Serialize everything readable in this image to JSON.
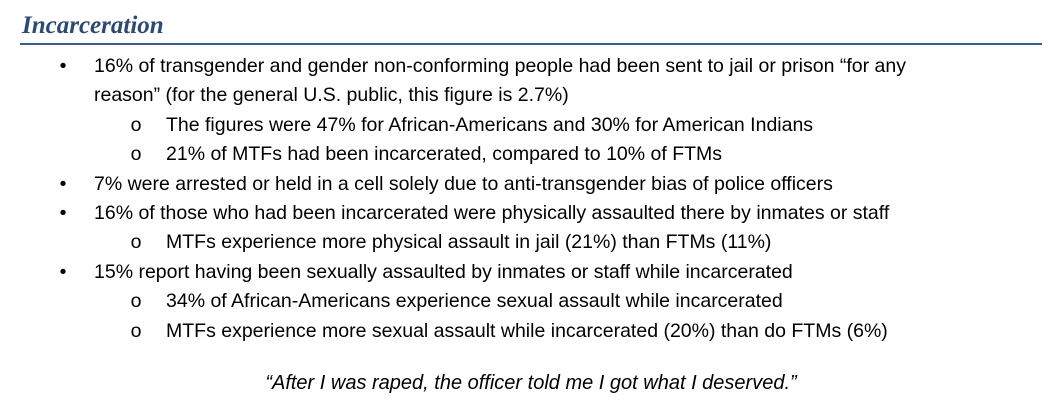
{
  "heading": "Incarceration",
  "bullets": {
    "level1_symbol": "•",
    "level2_symbol": "o"
  },
  "items": [
    {
      "level": 1,
      "lines": [
        "16%  of transgender and gender non-conforming people had been sent to jail or prison “for any",
        "reason”  (for the general U.S. public, this figure is 2.7%)"
      ]
    },
    {
      "level": 2,
      "lines": [
        "The figures were 47% for African-Americans and 30% for American Indians"
      ]
    },
    {
      "level": 2,
      "lines": [
        "21% of MTFs had been incarcerated, compared to 10% of FTMs"
      ]
    },
    {
      "level": 1,
      "lines": [
        "7%  were arrested or held in a cell solely due to anti-transgender bias of police officers"
      ]
    },
    {
      "level": 1,
      "lines": [
        "16% of those who had been incarcerated were physically assaulted there by inmates or staff"
      ]
    },
    {
      "level": 2,
      "lines": [
        "MTFs experience more physical assault in jail (21%) than FTMs (11%)"
      ]
    },
    {
      "level": 1,
      "lines": [
        "15% report having been sexually assaulted by inmates or staff while incarcerated"
      ]
    },
    {
      "level": 2,
      "lines": [
        "34% of African-Americans experience sexual assault while incarcerated"
      ]
    },
    {
      "level": 2,
      "lines": [
        "MTFs experience more sexual assault while incarcerated (20%) than do FTMs (6%)"
      ]
    }
  ],
  "quote": "“After I was raped, the officer told me I got what I deserved.”",
  "colors": {
    "heading": "#2e4a73",
    "rule": "#3b5c8c",
    "text": "#000000"
  }
}
